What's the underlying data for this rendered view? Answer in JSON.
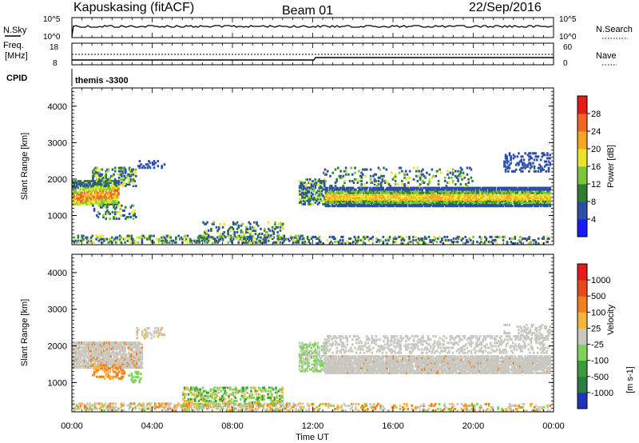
{
  "header": {
    "station": "Kapuskasing (fitACF)",
    "beam": "Beam 01",
    "date": "22/Sep/2016"
  },
  "top_panels": {
    "nsky_label": "N.Sky",
    "nsky_ticks": [
      "10^5",
      "10^0"
    ],
    "nsearch_label": "N.Search",
    "nsearch_ticks": [
      "10^5",
      "10^0"
    ],
    "freq_label": "Freq.",
    "freq_unit": "[MHz]",
    "freq_ticks": [
      "18",
      "8"
    ],
    "nave_label": "Nave",
    "nave_ticks": [
      "60",
      "0"
    ],
    "cpid_label": "CPID",
    "cpid_value": "themis -3300"
  },
  "chart_data": [
    {
      "type": "heatmap",
      "name": "power",
      "ylabel": "Slant Range [km]",
      "xlabel": "Time UT",
      "xlim_hours": [
        0,
        24
      ],
      "ylim_km": [
        200,
        4500
      ],
      "y_ticks": [
        "4000",
        "3000",
        "2000",
        "1000"
      ],
      "colorbar_label": "Power [dB]",
      "colorbar_ticks": [
        "28",
        "24",
        "20",
        "16",
        "12",
        "8",
        "4"
      ],
      "colors": [
        "#1a1aff",
        "#2b4fa8",
        "#2e7d32",
        "#7cc63a",
        "#e7e62a",
        "#f6a623",
        "#f26522",
        "#e51b1b"
      ]
    },
    {
      "type": "heatmap",
      "name": "velocity",
      "ylabel": "Slant Range [km]",
      "xlabel": "Time UT",
      "xlim_hours": [
        0,
        24
      ],
      "ylim_km": [
        200,
        4500
      ],
      "y_ticks": [
        "4000",
        "3000",
        "2000",
        "1000"
      ],
      "x_ticks": [
        "00:00",
        "04:00",
        "08:00",
        "12:00",
        "16:00",
        "20:00",
        "00:00"
      ],
      "colorbar_label": "Velocity",
      "colorbar_unit": "[m s-1]",
      "colorbar_ticks": [
        "1000",
        "500",
        "100",
        "25",
        "-25",
        "-100",
        "-500",
        "-1000"
      ],
      "colors": [
        "#2233bb",
        "#2b7d44",
        "#3b9b3b",
        "#7fd15b",
        "#c8c8c0",
        "#f5b53a",
        "#f08020",
        "#e84a15",
        "#e51b1b"
      ]
    }
  ]
}
